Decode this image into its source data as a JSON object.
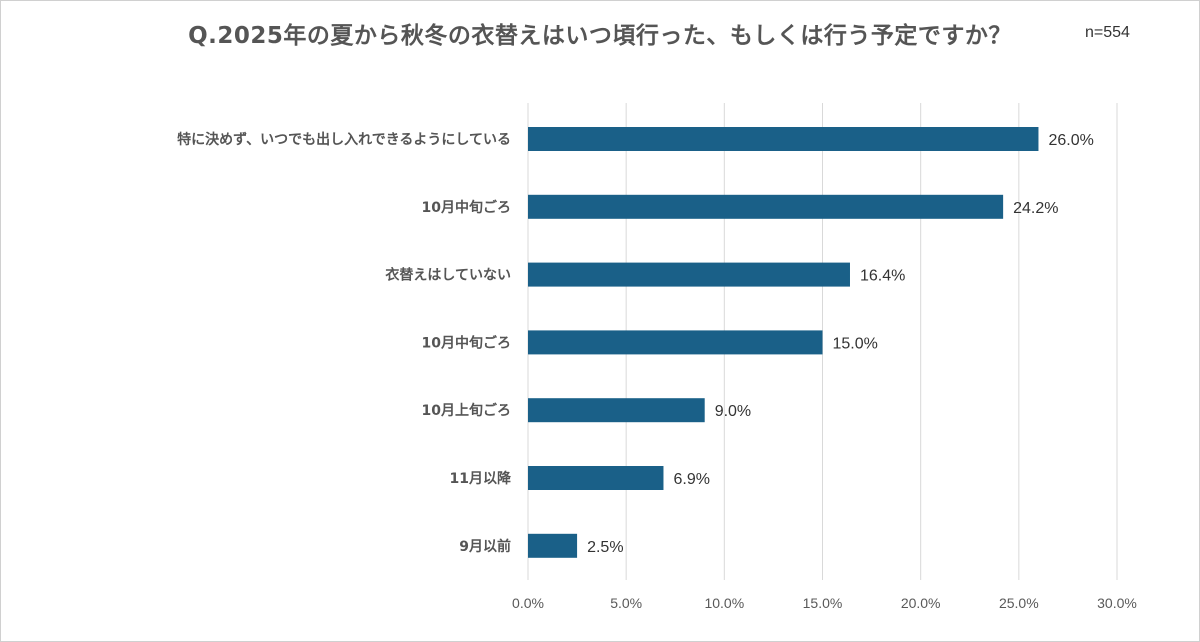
{
  "title": "Q.2025年の夏から秋冬の衣替えはいつ頃行った、もしくは行う予定ですか？",
  "sample_size": "n=554",
  "colors": {
    "bar": "#1a6088",
    "gridline": "#d9d9d9",
    "label_text": "#555555"
  },
  "chart_data": {
    "type": "bar",
    "orientation": "horizontal",
    "categories": [
      "特に決めず、いつでも出し入れできるようにしている",
      "10月中旬ごろ",
      "衣替えはしていない",
      "10月中旬ごろ",
      "10月上旬ごろ",
      "11月以降",
      "9月以前"
    ],
    "values": [
      26.0,
      24.2,
      16.4,
      15.0,
      9.0,
      6.9,
      2.5
    ],
    "value_labels": [
      "26.0%",
      "24.2%",
      "16.4%",
      "15.0%",
      "9.0%",
      "6.9%",
      "2.5%"
    ],
    "xlim": [
      0,
      30
    ],
    "xticks": [
      0,
      5,
      10,
      15,
      20,
      25,
      30
    ],
    "xtick_labels": [
      "0.0%",
      "5.0%",
      "10.0%",
      "15.0%",
      "20.0%",
      "25.0%",
      "30.0%"
    ],
    "grid": true,
    "legend": "none"
  }
}
